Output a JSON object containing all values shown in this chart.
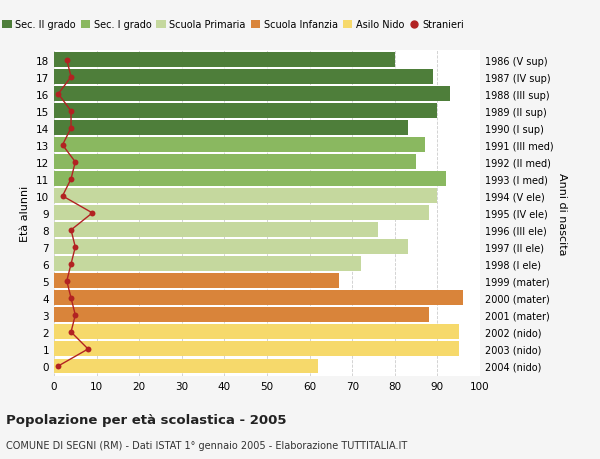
{
  "ages": [
    0,
    1,
    2,
    3,
    4,
    5,
    6,
    7,
    8,
    9,
    10,
    11,
    12,
    13,
    14,
    15,
    16,
    17,
    18
  ],
  "bar_values": [
    62,
    95,
    95,
    88,
    96,
    67,
    72,
    83,
    76,
    88,
    90,
    92,
    85,
    87,
    83,
    90,
    93,
    89,
    80
  ],
  "stranieri": [
    1,
    8,
    4,
    5,
    4,
    3,
    4,
    5,
    4,
    9,
    2,
    4,
    5,
    2,
    4,
    4,
    1,
    4,
    3
  ],
  "right_labels": [
    "2004 (nido)",
    "2003 (nido)",
    "2002 (nido)",
    "2001 (mater)",
    "2000 (mater)",
    "1999 (mater)",
    "1998 (I ele)",
    "1997 (II ele)",
    "1996 (III ele)",
    "1995 (IV ele)",
    "1994 (V ele)",
    "1993 (I med)",
    "1992 (II med)",
    "1991 (III med)",
    "1990 (I sup)",
    "1989 (II sup)",
    "1988 (III sup)",
    "1987 (IV sup)",
    "1986 (V sup)"
  ],
  "bar_colors": [
    "#f6d96b",
    "#f6d96b",
    "#f6d96b",
    "#d9843a",
    "#d9843a",
    "#d9843a",
    "#c5d89e",
    "#c5d89e",
    "#c5d89e",
    "#c5d89e",
    "#c5d89e",
    "#8ab860",
    "#8ab860",
    "#8ab860",
    "#4e7e3a",
    "#4e7e3a",
    "#4e7e3a",
    "#4e7e3a",
    "#4e7e3a"
  ],
  "legend_labels": [
    "Sec. II grado",
    "Sec. I grado",
    "Scuola Primaria",
    "Scuola Infanzia",
    "Asilo Nido",
    "Stranieri"
  ],
  "legend_colors": [
    "#4e7e3a",
    "#8ab860",
    "#c5d89e",
    "#d9843a",
    "#f6d96b",
    "#b22222"
  ],
  "stranieri_color": "#b22222",
  "title": "Popolazione per età scolastica - 2005",
  "subtitle": "COMUNE DI SEGNI (RM) - Dati ISTAT 1° gennaio 2005 - Elaborazione TUTTITALIA.IT",
  "ylabel": "Età alunni",
  "right_ylabel": "Anni di nascita",
  "xlim": [
    0,
    100
  ],
  "xticks": [
    0,
    10,
    20,
    30,
    40,
    50,
    60,
    70,
    80,
    90,
    100
  ],
  "background_color": "#f5f5f5",
  "bar_background": "#ffffff"
}
